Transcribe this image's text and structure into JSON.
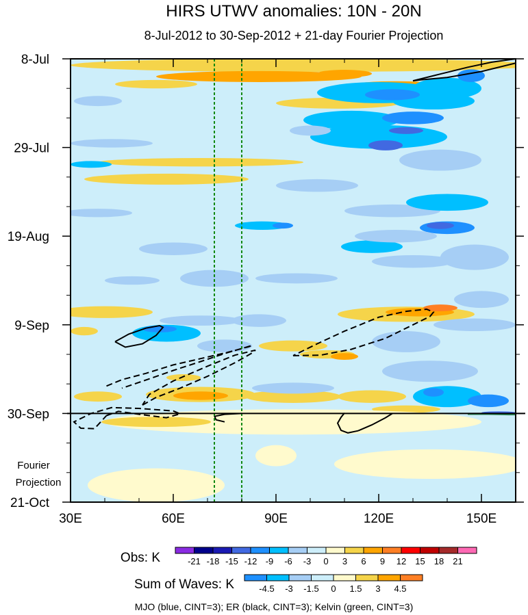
{
  "chart_data": {
    "type": "heatmap",
    "title": "HIRS UTWV anomalies: 10N - 20N",
    "subtitle": "8-Jul-2012 to 30-Sep-2012 + 21-day Fourier Projection",
    "x_axis": {
      "range": [
        30,
        160
      ],
      "ticks": [
        {
          "value": 30,
          "label": "30E"
        },
        {
          "value": 60,
          "label": "60E"
        },
        {
          "value": 90,
          "label": "90E"
        },
        {
          "value": 120,
          "label": "120E"
        },
        {
          "value": 150,
          "label": "150E"
        }
      ],
      "minor_step": 10
    },
    "y_axis": {
      "range_days": [
        0,
        105
      ],
      "ticks": [
        {
          "day": 0,
          "label": "8-Jul"
        },
        {
          "day": 21,
          "label": "29-Jul"
        },
        {
          "day": 42,
          "label": "19-Aug"
        },
        {
          "day": 63,
          "label": "9-Sep"
        },
        {
          "day": 84,
          "label": "30-Sep"
        },
        {
          "day": 105,
          "label": "21-Oct"
        }
      ],
      "minor_step": 7,
      "observation_end_day": 84,
      "projection_label": [
        "Fourier",
        "Projection"
      ]
    },
    "vertical_reference_lines": [
      72,
      80
    ],
    "obs_legend": {
      "label": "Obs: K",
      "levels": [
        "-21",
        "-18",
        "-15",
        "-12",
        "-9",
        "-6",
        "-3",
        "0",
        "3",
        "6",
        "9",
        "12",
        "15",
        "18",
        "21"
      ],
      "colors": [
        "#8a2be2",
        "#00008b",
        "#1a1ab3",
        "#4169e1",
        "#1e90ff",
        "#00bfff",
        "#a6cef5",
        "#cdeefa",
        "#fffacd",
        "#f5d44a",
        "#ffa500",
        "#ff7f24",
        "#ff0000",
        "#c00000",
        "#a52a2a",
        "#ff69b4"
      ]
    },
    "waves_legend": {
      "label": "Sum of Waves: K",
      "levels": [
        "-4.5",
        "-3",
        "-1.5",
        "0",
        "1.5",
        "3",
        "4.5"
      ],
      "colors": [
        "#1e90ff",
        "#00bfff",
        "#a6cef5",
        "#cdeefa",
        "#fffacd",
        "#f5d44a",
        "#ffa500",
        "#ff7f24"
      ]
    },
    "footer": "MJO (blue, CINT=3); ER (black, CINT=3); Kelvin (green, CINT=3)",
    "background_color": "#cdeefa",
    "anomaly_patches": [
      {
        "lon": 98,
        "day": 1.5,
        "rx": 68,
        "ry": 1.6,
        "cat": 9
      },
      {
        "lon": 85,
        "day": 4.2,
        "rx": 30,
        "ry": 1.3,
        "cat": 10
      },
      {
        "lon": 110,
        "day": 3.5,
        "rx": 8,
        "ry": 0.9,
        "cat": 10
      },
      {
        "lon": 55,
        "day": 6,
        "rx": 12,
        "ry": 1.0,
        "cat": 9
      },
      {
        "lon": 125,
        "day": 6.5,
        "rx": 14,
        "ry": 1.2,
        "cat": 10
      },
      {
        "lon": 140,
        "day": 7,
        "rx": 10,
        "ry": 2.5,
        "cat": 5
      },
      {
        "lon": 108,
        "day": 10.5,
        "rx": 18,
        "ry": 1.3,
        "cat": 9
      },
      {
        "lon": 136,
        "day": 10,
        "rx": 12,
        "ry": 2.0,
        "cat": 5
      },
      {
        "lon": 112,
        "day": 14.5,
        "rx": 14,
        "ry": 2.2,
        "cat": 5
      },
      {
        "lon": 120,
        "day": 18.5,
        "rx": 20,
        "ry": 2.8,
        "cat": 5
      },
      {
        "lon": 122,
        "day": 20.5,
        "rx": 5,
        "ry": 1.2,
        "cat": 3
      },
      {
        "lon": 100,
        "day": 17,
        "rx": 6,
        "ry": 1.2,
        "cat": 6
      },
      {
        "lon": 38,
        "day": 10,
        "rx": 7,
        "ry": 1.2,
        "cat": 6
      },
      {
        "lon": 68,
        "day": 24.5,
        "rx": 30,
        "ry": 1.0,
        "cat": 9
      },
      {
        "lon": 58,
        "day": 28.5,
        "rx": 24,
        "ry": 1.3,
        "cat": 9
      },
      {
        "lon": 36,
        "day": 25,
        "rx": 6,
        "ry": 0.8,
        "cat": 5
      },
      {
        "lon": 38,
        "day": 36.5,
        "rx": 10,
        "ry": 1.0,
        "cat": 6
      },
      {
        "lon": 138,
        "day": 24,
        "rx": 12,
        "ry": 2.5,
        "cat": 6
      },
      {
        "lon": 102,
        "day": 30,
        "rx": 12,
        "ry": 1.5,
        "cat": 6
      },
      {
        "lon": 124,
        "day": 36,
        "rx": 14,
        "ry": 1.5,
        "cat": 6
      },
      {
        "lon": 118,
        "day": 44.5,
        "rx": 9,
        "ry": 1.5,
        "cat": 5
      },
      {
        "lon": 148,
        "day": 47,
        "rx": 10,
        "ry": 3.0,
        "cat": 6
      },
      {
        "lon": 60,
        "day": 45,
        "rx": 10,
        "ry": 1.5,
        "cat": 6
      },
      {
        "lon": 48,
        "day": 52.5,
        "rx": 8,
        "ry": 1.0,
        "cat": 6
      },
      {
        "lon": 96,
        "day": 52,
        "rx": 12,
        "ry": 1.2,
        "cat": 6
      },
      {
        "lon": 128,
        "day": 60.5,
        "rx": 20,
        "ry": 1.8,
        "cat": 9
      },
      {
        "lon": 132,
        "day": 60,
        "rx": 10,
        "ry": 1.0,
        "cat": 10
      },
      {
        "lon": 138,
        "day": 59,
        "rx": 5,
        "ry": 0.8,
        "cat": 11
      },
      {
        "lon": 40,
        "day": 60,
        "rx": 14,
        "ry": 1.4,
        "cat": 9
      },
      {
        "lon": 68,
        "day": 62,
        "rx": 12,
        "ry": 1.2,
        "cat": 6
      },
      {
        "lon": 34,
        "day": 64.5,
        "rx": 4,
        "ry": 1.0,
        "cat": 9
      },
      {
        "lon": 148,
        "day": 63,
        "rx": 12,
        "ry": 1.5,
        "cat": 6
      },
      {
        "lon": 95,
        "day": 68,
        "rx": 10,
        "ry": 1.3,
        "cat": 9
      },
      {
        "lon": 105,
        "day": 70,
        "rx": 8,
        "ry": 1.0,
        "cat": 9
      },
      {
        "lon": 110,
        "day": 70.5,
        "rx": 4,
        "ry": 0.8,
        "cat": 10
      },
      {
        "lon": 68,
        "day": 79.5,
        "rx": 16,
        "ry": 1.8,
        "cat": 9
      },
      {
        "lon": 68,
        "day": 79.8,
        "rx": 8,
        "ry": 1.0,
        "cat": 10
      },
      {
        "lon": 63,
        "day": 75.5,
        "rx": 5,
        "ry": 0.8,
        "cat": 9
      },
      {
        "lon": 38,
        "day": 80,
        "rx": 7,
        "ry": 1.2,
        "cat": 9
      },
      {
        "lon": 95,
        "day": 80,
        "rx": 14,
        "ry": 1.5,
        "cat": 9
      },
      {
        "lon": 118,
        "day": 80,
        "rx": 10,
        "ry": 1.5,
        "cat": 9
      },
      {
        "lon": 128,
        "day": 83,
        "rx": 10,
        "ry": 0.9,
        "cat": 9
      },
      {
        "lon": 95,
        "day": 86,
        "rx": 55,
        "ry": 3.0,
        "cat": 8
      },
      {
        "lon": 55,
        "day": 86,
        "rx": 16,
        "ry": 1.2,
        "cat": 9
      },
      {
        "lon": 135,
        "day": 96,
        "rx": 28,
        "ry": 3.5,
        "cat": 8
      },
      {
        "lon": 90,
        "day": 94,
        "rx": 6,
        "ry": 2.5,
        "cat": 8
      },
      {
        "lon": 55,
        "day": 101,
        "rx": 20,
        "ry": 4.0,
        "cat": 8
      },
      {
        "lon": 120,
        "day": 8,
        "rx": 18,
        "ry": 2.5,
        "cat": 5
      },
      {
        "lon": 124,
        "day": 8.5,
        "rx": 8,
        "ry": 1.3,
        "cat": 4
      },
      {
        "lon": 130,
        "day": 14,
        "rx": 9,
        "ry": 1.5,
        "cat": 4
      },
      {
        "lon": 128,
        "day": 17,
        "rx": 5,
        "ry": 0.8,
        "cat": 3
      },
      {
        "lon": 147,
        "day": 4,
        "rx": 4,
        "ry": 1.5,
        "cat": 4
      },
      {
        "lon": 42,
        "day": 20,
        "rx": 12,
        "ry": 1.0,
        "cat": 6
      },
      {
        "lon": 86,
        "day": 39.5,
        "rx": 8,
        "ry": 1.0,
        "cat": 5
      },
      {
        "lon": 92,
        "day": 39.5,
        "rx": 3,
        "ry": 0.7,
        "cat": 4
      },
      {
        "lon": 140,
        "day": 34,
        "rx": 12,
        "ry": 2.0,
        "cat": 5
      },
      {
        "lon": 140,
        "day": 40,
        "rx": 8,
        "ry": 1.5,
        "cat": 4
      },
      {
        "lon": 138,
        "day": 39.5,
        "rx": 4,
        "ry": 0.8,
        "cat": 3
      },
      {
        "lon": 125,
        "day": 42,
        "rx": 12,
        "ry": 1.5,
        "cat": 6
      },
      {
        "lon": 130,
        "day": 48,
        "rx": 12,
        "ry": 1.5,
        "cat": 6
      },
      {
        "lon": 72,
        "day": 52,
        "rx": 10,
        "ry": 2.0,
        "cat": 6
      },
      {
        "lon": 58,
        "day": 65,
        "rx": 10,
        "ry": 2.0,
        "cat": 5
      },
      {
        "lon": 56,
        "day": 64,
        "rx": 5,
        "ry": 0.8,
        "cat": 4
      },
      {
        "lon": 85,
        "day": 62,
        "rx": 8,
        "ry": 1.5,
        "cat": 6
      },
      {
        "lon": 150,
        "day": 57,
        "rx": 8,
        "ry": 2.0,
        "cat": 6
      },
      {
        "lon": 128,
        "day": 67,
        "rx": 10,
        "ry": 2.5,
        "cat": 6
      },
      {
        "lon": 135,
        "day": 74,
        "rx": 14,
        "ry": 2.5,
        "cat": 6
      },
      {
        "lon": 140,
        "day": 80,
        "rx": 10,
        "ry": 2.5,
        "cat": 5
      },
      {
        "lon": 136,
        "day": 79,
        "rx": 3,
        "ry": 1.0,
        "cat": 4
      },
      {
        "lon": 152,
        "day": 81,
        "rx": 6,
        "ry": 1.5,
        "cat": 4
      },
      {
        "lon": 155,
        "day": 83.8,
        "rx": 5,
        "ry": 0.3,
        "cat": 3
      },
      {
        "lon": 95,
        "day": 78,
        "rx": 12,
        "ry": 1.3,
        "cat": 6
      },
      {
        "lon": 75,
        "day": 68,
        "rx": 8,
        "ry": 1.5,
        "cat": 6
      }
    ],
    "contour_lines": [
      {
        "type": "ER",
        "color": "#000000",
        "dashed": false,
        "points": [
          [
            130,
            5.2
          ],
          [
            138,
            3.6
          ],
          [
            146,
            2.0
          ],
          [
            153,
            0.8
          ],
          [
            160,
            0
          ]
        ]
      },
      {
        "type": "ER",
        "color": "#000000",
        "dashed": false,
        "points": [
          [
            160,
            1.0
          ],
          [
            150,
            3.0
          ],
          [
            140,
            4.4
          ],
          [
            132,
            5.0
          ],
          [
            130,
            5.2
          ]
        ]
      },
      {
        "type": "ER",
        "color": "#000000",
        "dashed": false,
        "points": [
          [
            43,
            67
          ],
          [
            46,
            68.3
          ],
          [
            51,
            67.5
          ],
          [
            55,
            65.5
          ],
          [
            57,
            63.6
          ],
          [
            56,
            63.2
          ],
          [
            52,
            63.8
          ],
          [
            47,
            65.2
          ],
          [
            43,
            67
          ]
        ]
      },
      {
        "type": "ER",
        "color": "#000000",
        "dashed": true,
        "points": [
          [
            40.5,
            77.5
          ],
          [
            45,
            76
          ],
          [
            52,
            74.5
          ],
          [
            60,
            72.5
          ],
          [
            68,
            71
          ],
          [
            76,
            69.5
          ],
          [
            82,
            68.2
          ],
          [
            83,
            67.9
          ],
          [
            80,
            68.6
          ],
          [
            75,
            69.8
          ],
          [
            68,
            71.7
          ],
          [
            60,
            73.8
          ],
          [
            53,
            75.8
          ],
          [
            48,
            77.2
          ],
          [
            45,
            78
          ]
        ]
      },
      {
        "type": "ER",
        "color": "#000000",
        "dashed": true,
        "points": [
          [
            51,
            82
          ],
          [
            55,
            80.2
          ],
          [
            62,
            78
          ],
          [
            70,
            75.2
          ],
          [
            78,
            72
          ],
          [
            83,
            69.7
          ],
          [
            84,
            69
          ],
          [
            78,
            70.2
          ],
          [
            70,
            72.8
          ],
          [
            60,
            76.3
          ],
          [
            53,
            79.5
          ],
          [
            51,
            82
          ]
        ]
      },
      {
        "type": "ER",
        "color": "#000000",
        "dashed": true,
        "points": [
          [
            40.5,
            84.5
          ],
          [
            44,
            83.5
          ],
          [
            50,
            84.2
          ],
          [
            58,
            85
          ],
          [
            62,
            84.1
          ],
          [
            60,
            83.4
          ],
          [
            50,
            82.8
          ],
          [
            42,
            82.6
          ],
          [
            36,
            84
          ],
          [
            31,
            86
          ],
          [
            33,
            87.5
          ],
          [
            37,
            87.6
          ],
          [
            40.5,
            84.5
          ]
        ]
      },
      {
        "type": "ER",
        "color": "#000000",
        "dashed": true,
        "points": [
          [
            95,
            70.3
          ],
          [
            103,
            70.2
          ],
          [
            112,
            68.8
          ],
          [
            122,
            66.2
          ],
          [
            130,
            63
          ],
          [
            135,
            61
          ],
          [
            136,
            60
          ],
          [
            134,
            59.3
          ],
          [
            128,
            59.8
          ],
          [
            120,
            61.2
          ],
          [
            110,
            64.5
          ],
          [
            102,
            67.5
          ],
          [
            95,
            70.3
          ]
        ]
      },
      {
        "type": "ER",
        "color": "#000000",
        "dashed": false,
        "points": [
          [
            72,
            84.7
          ],
          [
            75,
            84.2
          ],
          [
            80,
            84
          ]
        ]
      },
      {
        "type": "ER",
        "color": "#000000",
        "dashed": false,
        "points": [
          [
            72,
            84.5
          ],
          [
            72.5,
            85.5
          ],
          [
            75,
            86
          ]
        ]
      },
      {
        "type": "ER",
        "color": "#000000",
        "dashed": false,
        "points": [
          [
            110,
            83.9
          ],
          [
            109,
            84.9
          ],
          [
            108,
            86.3
          ],
          [
            109,
            88
          ],
          [
            111,
            88.6
          ],
          [
            114,
            88.1
          ]
        ]
      },
      {
        "type": "ER",
        "color": "#000000",
        "dashed": false,
        "points": [
          [
            114,
            88.1
          ],
          [
            118,
            86.7
          ],
          [
            122,
            85
          ],
          [
            124,
            84
          ]
        ]
      },
      {
        "type": "Kelvin",
        "color": "#2e8b57",
        "dashed": false,
        "points": [
          [
            146,
            84.1
          ],
          [
            152,
            84.1
          ],
          [
            158,
            84.2
          ],
          [
            160,
            84.2
          ]
        ]
      }
    ]
  }
}
